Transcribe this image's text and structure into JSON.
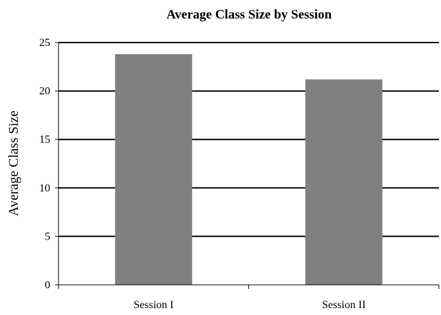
{
  "chart_data": {
    "type": "bar",
    "title": "Average Class Size by Session",
    "xlabel": "",
    "ylabel": "Average Class Size",
    "categories": [
      "Session I",
      "Session II"
    ],
    "series": [
      {
        "values": [
          23.8,
          21.2
        ],
        "color": "#808080"
      }
    ],
    "ylim": [
      0,
      25
    ],
    "yticks": [
      "0",
      "5",
      "10",
      "15",
      "20",
      "25"
    ],
    "grid": true,
    "gridline_color": "#000000",
    "legend": "none"
  }
}
